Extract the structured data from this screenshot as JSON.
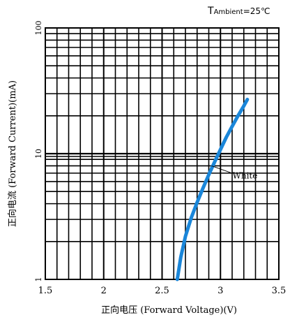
{
  "chart_data": {
    "type": "line",
    "title": "",
    "condition": {
      "prefix": "T",
      "subscript": "Ambient",
      "value": "=25",
      "unit": "℃"
    },
    "xlabel": "正向电压 (Forward Voltage)(V)",
    "ylabel": "正向电流 (Forward Current)(mA)",
    "xlim": [
      1.5,
      3.5
    ],
    "ylim": [
      1,
      100
    ],
    "yscale": "log",
    "xticks": [
      "1.5",
      "2",
      "2.5",
      "3",
      "3.5"
    ],
    "xtick_values": [
      1.5,
      2,
      2.5,
      3,
      3.5
    ],
    "yticks": [
      "1",
      "10",
      "100"
    ],
    "ytick_values": [
      1,
      10,
      100
    ],
    "grid": true,
    "series": [
      {
        "name": "White",
        "color": "#1a86d9",
        "x": [
          2.63,
          2.66,
          2.7,
          2.75,
          2.8,
          2.85,
          2.9,
          2.95,
          3.0,
          3.05,
          3.1,
          3.15,
          3.2,
          3.23
        ],
        "y": [
          1.0,
          1.5,
          2.2,
          3.1,
          4.1,
          5.3,
          6.8,
          8.6,
          10.8,
          13.5,
          16.5,
          20.0,
          24.0,
          27.0
        ]
      }
    ],
    "annotation": {
      "text": "White",
      "x": 2.9,
      "y": 8.0
    }
  }
}
